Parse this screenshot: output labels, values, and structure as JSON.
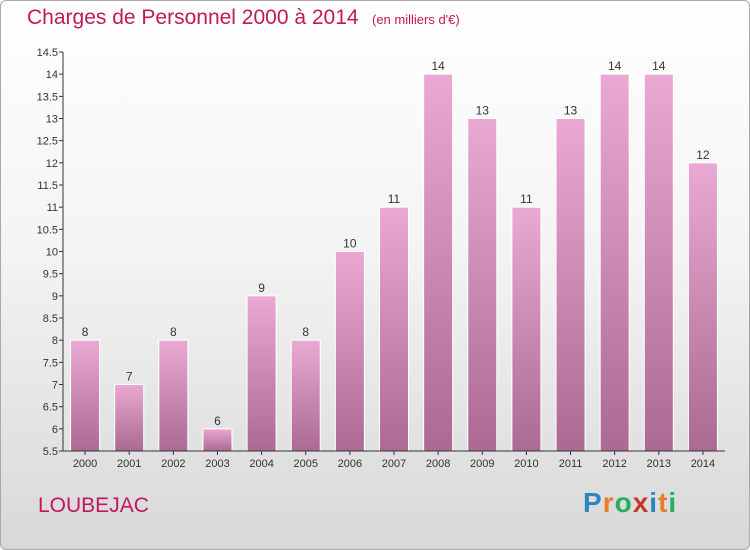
{
  "header": {
    "title": "Charges de Personnel 2000 à 2014",
    "subtitle": "(en milliers d'€)"
  },
  "footer": {
    "city": "LOUBEJAC",
    "logo_letters": [
      {
        "char": "P",
        "color": "#2e86c1"
      },
      {
        "char": "r",
        "color": "#e67e22"
      },
      {
        "char": "o",
        "color": "#27ae60"
      },
      {
        "char": "x",
        "color": "#c0392b"
      },
      {
        "char": "i",
        "color": "#2e86c1"
      },
      {
        "char": "t",
        "color": "#e67e22"
      },
      {
        "char": "i",
        "color": "#27ae60"
      }
    ]
  },
  "chart_data": {
    "type": "bar",
    "title": "Charges de Personnel 2000 à 2014",
    "subtitle": "(en milliers d'€)",
    "xlabel": "",
    "ylabel": "",
    "categories": [
      "2000",
      "2001",
      "2002",
      "2003",
      "2004",
      "2005",
      "2006",
      "2007",
      "2008",
      "2009",
      "2010",
      "2011",
      "2012",
      "2013",
      "2014"
    ],
    "values": [
      8,
      7,
      8,
      6,
      9,
      8,
      10,
      11,
      14,
      13,
      11,
      13,
      14,
      14,
      12
    ],
    "data_labels": [
      "8",
      "7",
      "8",
      "6",
      "9",
      "8",
      "10",
      "11",
      "14",
      "13",
      "11",
      "13",
      "14",
      "14",
      "12"
    ],
    "ylim": [
      5.5,
      14.5
    ],
    "yticks": [
      5.5,
      6,
      6.5,
      7,
      7.5,
      8,
      8.5,
      9,
      9.5,
      10,
      10.5,
      11,
      11.5,
      12,
      12.5,
      13,
      13.5,
      14,
      14.5
    ],
    "ytick_labels": [
      "5.5",
      "6",
      "6.5",
      "7",
      "7.5",
      "8",
      "8.5",
      "9",
      "9.5",
      "10",
      "10.5",
      "11",
      "11.5",
      "12",
      "12.5",
      "13",
      "13.5",
      "14",
      "14.5"
    ],
    "grid": false,
    "legend": "none",
    "bar_color_top": "#e9a9d2",
    "bar_color_bottom": "#ab6a91"
  }
}
